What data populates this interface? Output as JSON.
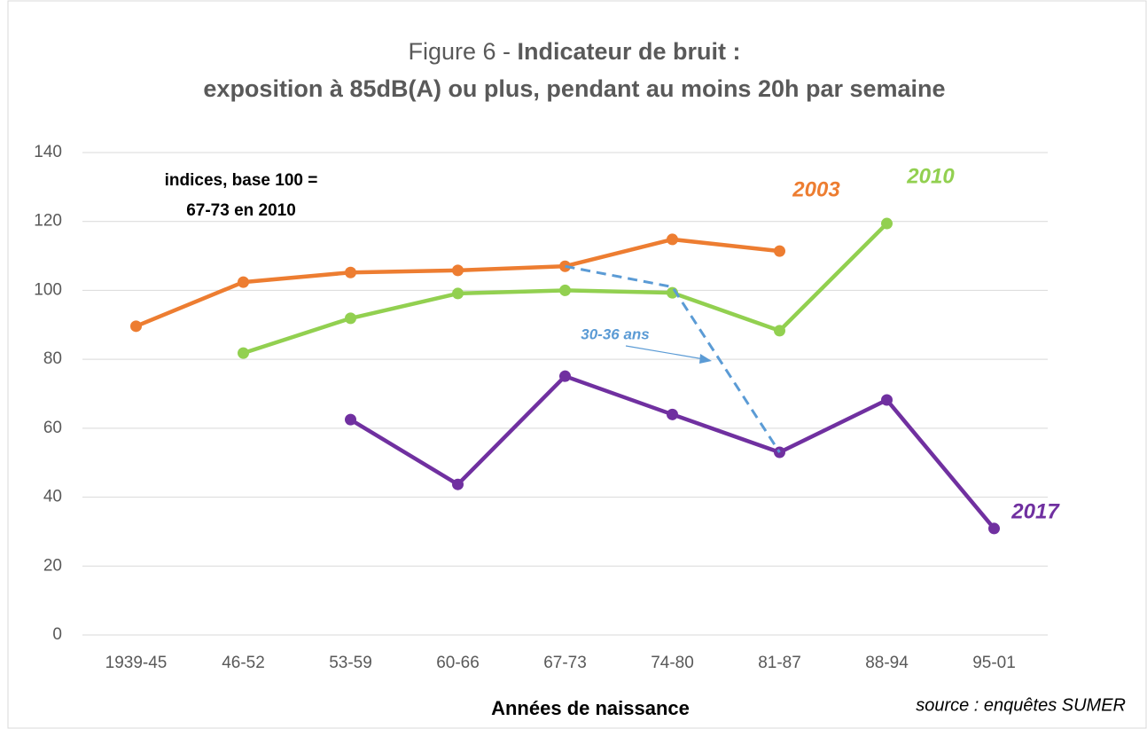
{
  "chart_data": {
    "type": "line",
    "title": {
      "prefix": "Figure 6 -",
      "main": "Indicateur de bruit :",
      "line2": "exposition à 85dB(A) ou plus, pendant au moins 20h par semaine"
    },
    "annotation": [
      "indices, base 100 =",
      "67-73 en 2010"
    ],
    "x_label": "Années de naissance",
    "source": "source : enquêtes SUMER",
    "categories": [
      "1939-45",
      "46-52",
      "53-59",
      "60-66",
      "67-73",
      "74-80",
      "81-87",
      "88-94",
      "95-01"
    ],
    "series": [
      {
        "name": "2003",
        "color": "#ed7d31",
        "values": [
          89.6,
          102.4,
          105.2,
          105.8,
          107,
          114.8,
          111.4,
          null,
          null
        ]
      },
      {
        "name": "2010",
        "color": "#92d050",
        "values": [
          null,
          81.8,
          91.9,
          99.1,
          100,
          99.3,
          88.3,
          119.4,
          null
        ]
      },
      {
        "name": "2017",
        "color": "#7030a0",
        "values": [
          null,
          null,
          62.5,
          43.7,
          75.1,
          64,
          53,
          68.2,
          30.9
        ]
      },
      {
        "name": "30-36 ans",
        "color": "#5b9bd5",
        "dashed": true,
        "values": [
          null,
          null,
          null,
          null,
          107,
          101,
          53,
          null,
          null
        ]
      }
    ],
    "ylim": [
      0,
      140
    ],
    "yticks": [
      0,
      20,
      40,
      60,
      80,
      100,
      120,
      140
    ],
    "grid": true
  }
}
